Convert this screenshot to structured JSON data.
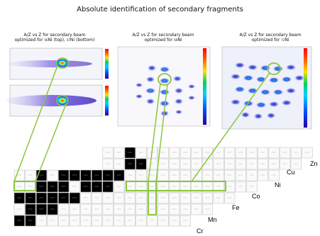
{
  "title": "Absolute identification of secondary fragments",
  "panels": [
    {
      "line1": "A/Z vs Z for secondary beam",
      "pre": "optimized for ",
      "m1": "56",
      "s1": "Ni (top), ",
      "m2": "57",
      "s2": "Ni (bottom)"
    },
    {
      "line1": "A/Z vs Z for secondary beam",
      "pre": "optimized for ",
      "m1": "69",
      "s1": "Ni",
      "m2": "",
      "s2": ""
    },
    {
      "line1": "A/Z vs Z for secondary beam",
      "pre": "optimized for ",
      "m1": "72",
      "s1": "Ni",
      "m2": "",
      "s2": ""
    }
  ],
  "elements": [
    "Zn",
    "Cu",
    "Ni",
    "Co",
    "Fe",
    "Mn",
    "Cr"
  ],
  "colors": {
    "highlight": "#8cc63f",
    "grid": "#bbbbbb",
    "filled": "#000000"
  }
}
